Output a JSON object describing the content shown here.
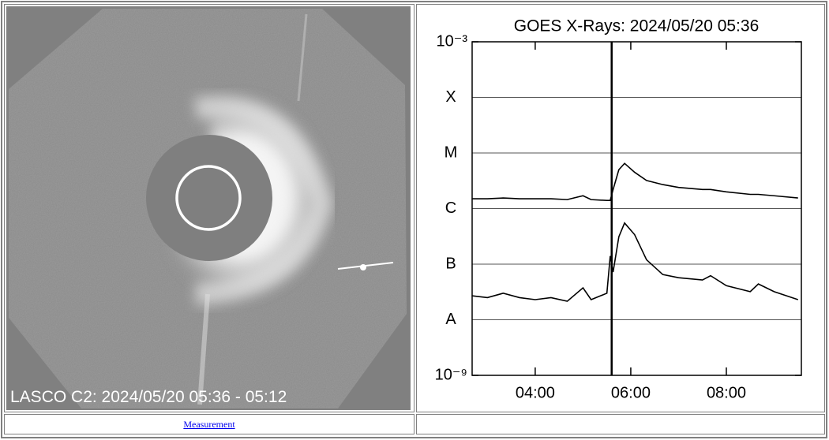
{
  "image": {
    "caption": "LASCO C2: 2024/05/20 05:36 - 05:12"
  },
  "links": {
    "measurement": "Measurement"
  },
  "chart_data": {
    "type": "line",
    "title": "GOES X-Rays: 2024/05/20 05:36",
    "log_y": true,
    "grid": true,
    "cursor_x": 5.6,
    "xlim": [
      2.68,
      9.57
    ],
    "xticks": [
      {
        "value": 4,
        "label": "04:00"
      },
      {
        "value": 6,
        "label": "06:00"
      },
      {
        "value": 8,
        "label": "08:00"
      }
    ],
    "ylim": [
      1e-09,
      0.001
    ],
    "yticks": [
      {
        "value": 0.001,
        "label": "10⁻³"
      },
      {
        "value": 0.0001,
        "label": "X"
      },
      {
        "value": 1e-05,
        "label": "M"
      },
      {
        "value": 1e-06,
        "label": "C"
      },
      {
        "value": 1e-07,
        "label": "B"
      },
      {
        "value": 1e-08,
        "label": "A"
      },
      {
        "value": 1e-09,
        "label": "10⁻⁹"
      }
    ],
    "x": [
      2.67,
      3,
      3.33,
      3.67,
      4,
      4.33,
      4.67,
      5,
      5.17,
      5.5,
      5.57,
      5.63,
      5.75,
      5.87,
      6.08,
      6.33,
      6.67,
      7,
      7.5,
      7.67,
      8,
      8.5,
      8.67,
      9,
      9.5
    ],
    "series": [
      {
        "color": "#000000",
        "values": [
          1.5e-06,
          1.5e-06,
          1.55e-06,
          1.5e-06,
          1.5e-06,
          1.5e-06,
          1.45e-06,
          1.7e-06,
          1.45e-06,
          1.4e-06,
          1.4e-06,
          2.2e-06,
          5e-06,
          6.5e-06,
          4.5e-06,
          3.2e-06,
          2.7e-06,
          2.4e-06,
          2.2e-06,
          2.2e-06,
          2e-06,
          1.8e-06,
          1.8e-06,
          1.7e-06,
          1.55e-06
        ]
      },
      {
        "color": "#000000",
        "values": [
          2.7e-08,
          2.5e-08,
          3e-08,
          2.5e-08,
          2.3e-08,
          2.5e-08,
          2.15e-08,
          3.75e-08,
          2.3e-08,
          3e-08,
          1.4e-07,
          7.2e-08,
          3.1e-07,
          5.5e-07,
          3.4e-07,
          1.2e-07,
          6.5e-08,
          5.7e-08,
          5.2e-08,
          6.2e-08,
          4.1e-08,
          3.2e-08,
          4.4e-08,
          3.2e-08,
          2.3e-08
        ]
      }
    ]
  }
}
